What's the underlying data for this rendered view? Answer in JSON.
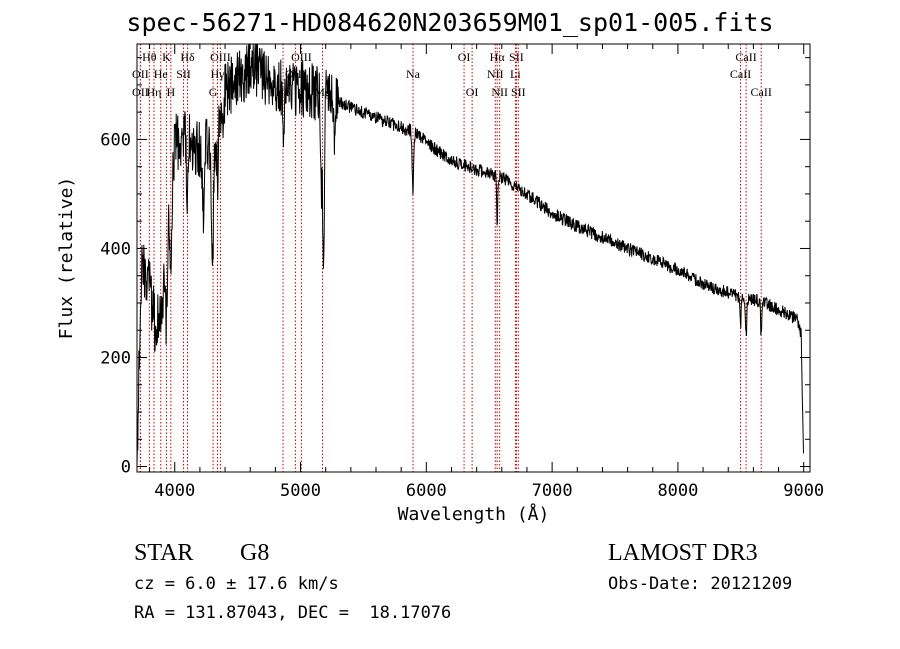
{
  "chart_data": {
    "type": "line",
    "title": "spec-56271-HD084620N203659M01_sp01-005.fits",
    "xlabel": "Wavelength (Å)",
    "ylabel": "Flux (relative)",
    "xlim": [
      3700,
      9050
    ],
    "ylim": [
      -10,
      775
    ],
    "x_ticks": [
      4000,
      5000,
      6000,
      7000,
      8000,
      9000
    ],
    "y_ticks": [
      0,
      200,
      400,
      600
    ],
    "x_tick_labels": [
      "4000",
      "5000",
      "6000",
      "7000",
      "8000",
      "9000"
    ],
    "y_tick_labels": [
      "0",
      "200",
      "400",
      "600"
    ],
    "continuum": [
      {
        "x": 3700,
        "y": 0
      },
      {
        "x": 3715,
        "y": 200
      },
      {
        "x": 3740,
        "y": 380
      },
      {
        "x": 3800,
        "y": 330
      },
      {
        "x": 3850,
        "y": 250
      },
      {
        "x": 3900,
        "y": 300
      },
      {
        "x": 3950,
        "y": 470
      },
      {
        "x": 4000,
        "y": 590
      },
      {
        "x": 4100,
        "y": 610
      },
      {
        "x": 4200,
        "y": 580
      },
      {
        "x": 4300,
        "y": 600
      },
      {
        "x": 4400,
        "y": 690
      },
      {
        "x": 4500,
        "y": 715
      },
      {
        "x": 4600,
        "y": 730
      },
      {
        "x": 4700,
        "y": 720
      },
      {
        "x": 4800,
        "y": 700
      },
      {
        "x": 4900,
        "y": 690
      },
      {
        "x": 5000,
        "y": 695
      },
      {
        "x": 5100,
        "y": 685
      },
      {
        "x": 5200,
        "y": 675
      },
      {
        "x": 5300,
        "y": 668
      },
      {
        "x": 5500,
        "y": 650
      },
      {
        "x": 5700,
        "y": 630
      },
      {
        "x": 5900,
        "y": 615
      },
      {
        "x": 6000,
        "y": 595
      },
      {
        "x": 6200,
        "y": 560
      },
      {
        "x": 6400,
        "y": 545
      },
      {
        "x": 6600,
        "y": 530
      },
      {
        "x": 6800,
        "y": 500
      },
      {
        "x": 7000,
        "y": 465
      },
      {
        "x": 7200,
        "y": 440
      },
      {
        "x": 7500,
        "y": 410
      },
      {
        "x": 7800,
        "y": 380
      },
      {
        "x": 8000,
        "y": 360
      },
      {
        "x": 8200,
        "y": 335
      },
      {
        "x": 8500,
        "y": 310
      },
      {
        "x": 8700,
        "y": 300
      },
      {
        "x": 8950,
        "y": 270
      },
      {
        "x": 8980,
        "y": 240
      },
      {
        "x": 9000,
        "y": 0
      }
    ],
    "absorption_features": [
      {
        "x": 3934,
        "depth": 150,
        "width": 8
      },
      {
        "x": 3969,
        "depth": 170,
        "width": 8
      },
      {
        "x": 4101,
        "depth": 110,
        "width": 7
      },
      {
        "x": 4226,
        "depth": 120,
        "width": 6
      },
      {
        "x": 4300,
        "depth": 220,
        "width": 9
      },
      {
        "x": 4340,
        "depth": 110,
        "width": 6
      },
      {
        "x": 4383,
        "depth": 90,
        "width": 5
      },
      {
        "x": 4861,
        "depth": 110,
        "width": 6
      },
      {
        "x": 5170,
        "depth": 180,
        "width": 9
      },
      {
        "x": 5184,
        "depth": 240,
        "width": 5
      },
      {
        "x": 5270,
        "depth": 50,
        "width": 5
      },
      {
        "x": 5893,
        "depth": 110,
        "width": 6
      },
      {
        "x": 6563,
        "depth": 80,
        "width": 5
      },
      {
        "x": 8498,
        "depth": 50,
        "width": 5
      },
      {
        "x": 8542,
        "depth": 70,
        "width": 5
      },
      {
        "x": 8662,
        "depth": 60,
        "width": 5
      }
    ],
    "noise": {
      "seed": 56271,
      "amplitude_blue": 55,
      "amplitude_red": 12
    },
    "line_markers": [
      {
        "label": "Hθ",
        "x": 3798,
        "row": 1
      },
      {
        "label": "OII",
        "x": 3727,
        "row": 2
      },
      {
        "label": "OII",
        "x": 3727,
        "row": 3
      },
      {
        "label": "K",
        "x": 3934,
        "row": 1
      },
      {
        "label": "He",
        "x": 3889,
        "row": 2
      },
      {
        "label": "Hη",
        "x": 3835,
        "row": 3
      },
      {
        "label": "Hδ",
        "x": 4102,
        "row": 1
      },
      {
        "label": "SII",
        "x": 4070,
        "row": 2
      },
      {
        "label": "H",
        "x": 3969,
        "row": 3
      },
      {
        "label": "OIII",
        "x": 4363,
        "row": 1
      },
      {
        "label": "Hγ",
        "x": 4340,
        "row": 2
      },
      {
        "label": "G",
        "x": 4305,
        "row": 3
      },
      {
        "label": "OIII",
        "x": 5007,
        "row": 1
      },
      {
        "label": "OIII",
        "x": 4959,
        "row": 2
      },
      {
        "label": "Hβ",
        "x": 4861,
        "row": 3
      },
      {
        "label": "Mg",
        "x": 5175,
        "row": 3
      },
      {
        "label": "Na",
        "x": 5894,
        "row": 2
      },
      {
        "label": "OI",
        "x": 6300,
        "row": 1
      },
      {
        "label": "OI",
        "x": 6364,
        "row": 3
      },
      {
        "label": "Hα",
        "x": 6563,
        "row": 1
      },
      {
        "label": "SII",
        "x": 6716,
        "row": 1
      },
      {
        "label": "NII",
        "x": 6548,
        "row": 2
      },
      {
        "label": "Li",
        "x": 6708,
        "row": 2
      },
      {
        "label": "NII",
        "x": 6583,
        "row": 3
      },
      {
        "label": "SII",
        "x": 6731,
        "row": 3
      },
      {
        "label": "CaII",
        "x": 8542,
        "row": 1
      },
      {
        "label": "CaII",
        "x": 8498,
        "row": 2
      },
      {
        "label": "CaII",
        "x": 8662,
        "row": 3
      }
    ]
  },
  "info": {
    "class_label": "STAR",
    "subclass": "G8",
    "survey": "LAMOST DR3",
    "redshift": "cz = 6.0 ± 17.6 km/s",
    "obs_date": "Obs-Date: 20121209",
    "coords": "RA = 131.87043, DEC =  18.17076"
  }
}
